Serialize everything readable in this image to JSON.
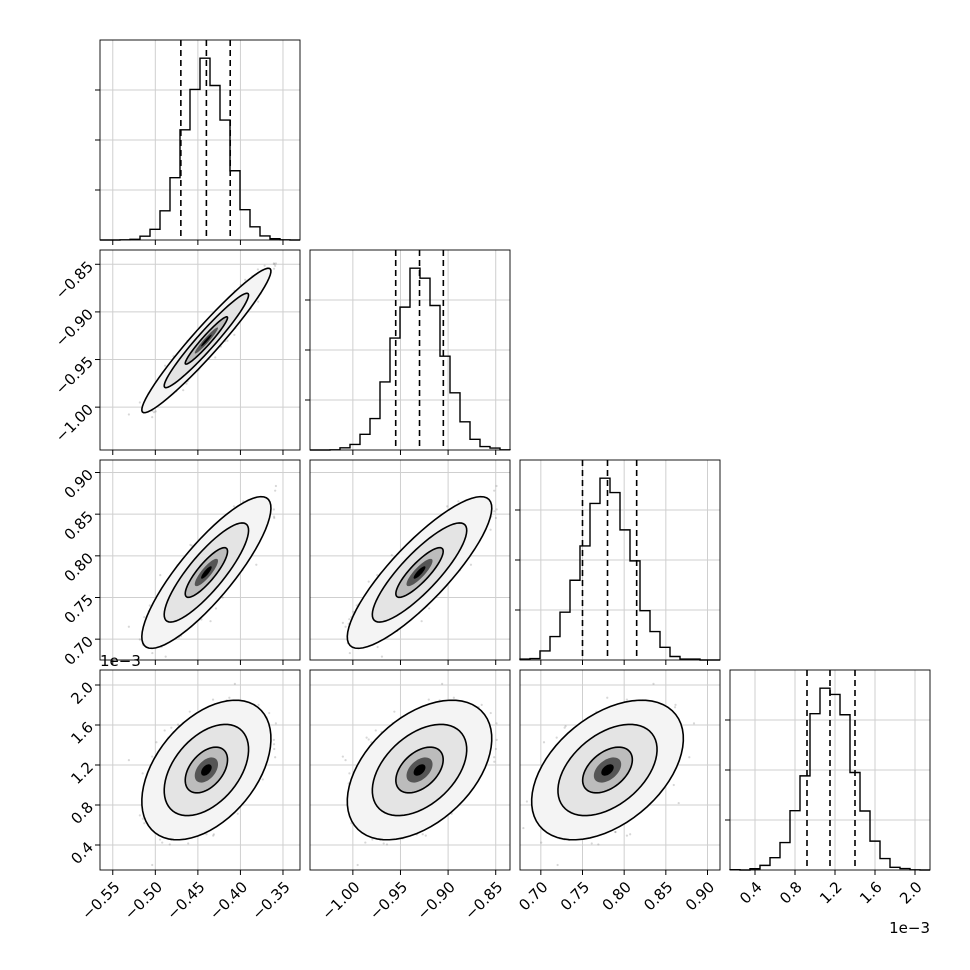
{
  "chart_data": {
    "type": "corner",
    "grid": true,
    "parameters": [
      {
        "range": [
          -0.565,
          -0.33
        ],
        "ticks": [
          -0.55,
          -0.5,
          -0.45,
          -0.4,
          -0.35
        ],
        "tick_labels": [
          "−0.55",
          "−0.50",
          "−0.45",
          "−0.40",
          "−0.35"
        ],
        "offset_text": "",
        "mean": -0.44,
        "sd": 0.025,
        "quantiles": [
          -0.47,
          -0.44,
          -0.412
        ]
      },
      {
        "range": [
          -1.045,
          -0.835
        ],
        "ticks": [
          -1.0,
          -0.95,
          -0.9,
          -0.85
        ],
        "tick_labels": [
          "−1.00",
          "−0.95",
          "−0.90",
          "−0.85"
        ],
        "offset_text": "",
        "mean": -0.93,
        "sd": 0.025,
        "quantiles": [
          -0.955,
          -0.93,
          -0.905
        ]
      },
      {
        "range": [
          0.675,
          0.915
        ],
        "ticks": [
          0.7,
          0.75,
          0.8,
          0.85,
          0.9
        ],
        "tick_labels": [
          "0.70",
          "0.75",
          "0.80",
          "0.85",
          "0.90"
        ],
        "offset_text": "",
        "mean": 0.78,
        "sd": 0.03,
        "quantiles": [
          0.75,
          0.78,
          0.815
        ]
      },
      {
        "range": [
          0.15,
          2.15
        ],
        "ticks": [
          0.4,
          0.8,
          1.2,
          1.6,
          2.0
        ],
        "tick_labels": [
          "0.4",
          "0.8",
          "1.2",
          "1.6",
          "2.0"
        ],
        "offset_text": "1e−3",
        "mean": 1.15,
        "sd": 0.23,
        "quantiles": [
          0.92,
          1.15,
          1.4
        ]
      }
    ],
    "correlations": [
      [
        1.0,
        0.96,
        0.85,
        0.45
      ],
      [
        0.96,
        1.0,
        0.85,
        0.45
      ],
      [
        0.85,
        0.85,
        1.0,
        0.45
      ],
      [
        0.45,
        0.45,
        0.45,
        1.0
      ]
    ],
    "histogram_bins": 20,
    "contour_levels": [
      0.39,
      0.86,
      0.99
    ]
  }
}
